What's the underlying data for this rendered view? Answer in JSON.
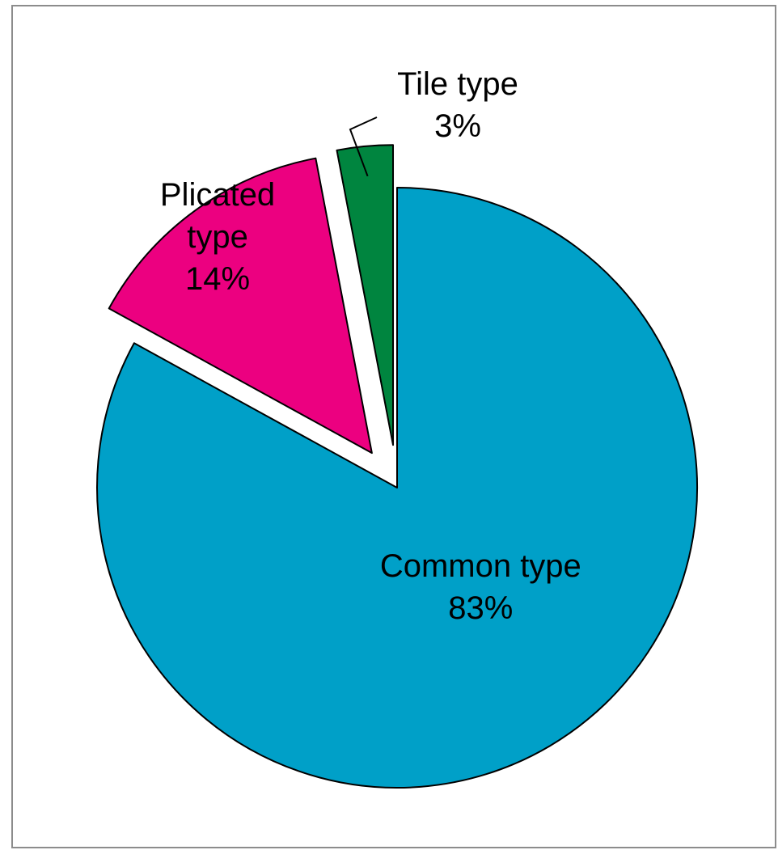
{
  "chart_data": {
    "type": "pie",
    "title": "",
    "start_angle_deg": 0,
    "direction": "clockwise",
    "slices": [
      {
        "name": "Common type",
        "pct_label": "83%",
        "value": 83,
        "color": "#00a0c8",
        "exploded": false
      },
      {
        "name": "Plicated type",
        "pct_label": "14%",
        "value": 14,
        "color": "#ec0080",
        "exploded": true
      },
      {
        "name": "Tile type",
        "pct_label": "3%",
        "value": 3,
        "color": "#00853f",
        "exploded": true
      }
    ],
    "legend": "none",
    "stroke_color": "#000000"
  }
}
